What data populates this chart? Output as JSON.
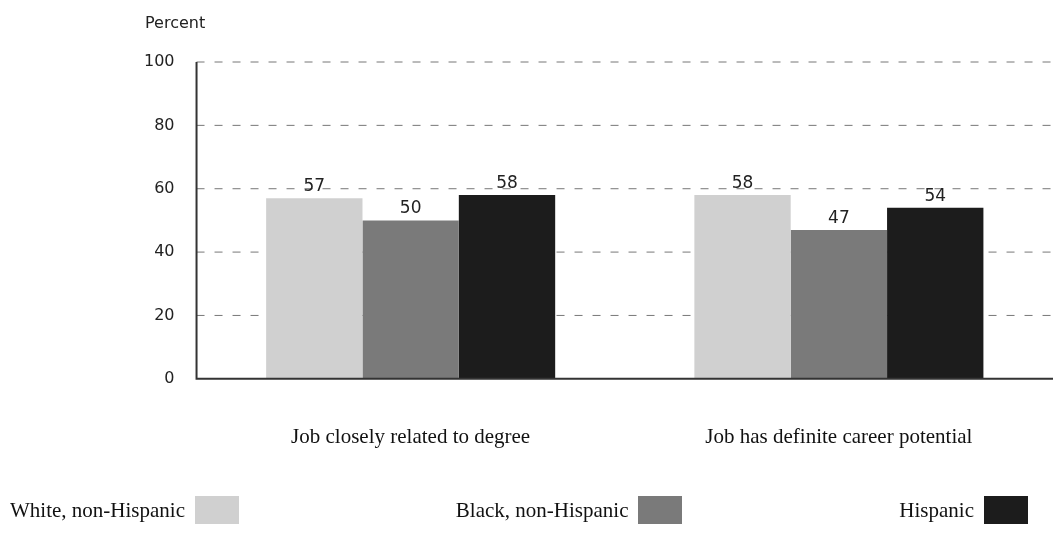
{
  "chart_data": {
    "type": "bar",
    "ylabel": "Percent",
    "categories": [
      "Job closely related to degree",
      "Job has definite career potential"
    ],
    "series": [
      {
        "name": "White, non-Hispanic",
        "color": "#d0d0d0",
        "values": [
          57,
          58
        ]
      },
      {
        "name": "Black, non-Hispanic",
        "color": "#7a7a7a",
        "values": [
          50,
          47
        ]
      },
      {
        "name": "Hispanic",
        "color": "#1c1c1c",
        "values": [
          58,
          54
        ]
      }
    ],
    "ylim": [
      0,
      100
    ],
    "yticks": [
      0,
      20,
      40,
      60,
      80,
      100
    ],
    "grid": "y",
    "data_labels": true,
    "legend": "bottom"
  }
}
